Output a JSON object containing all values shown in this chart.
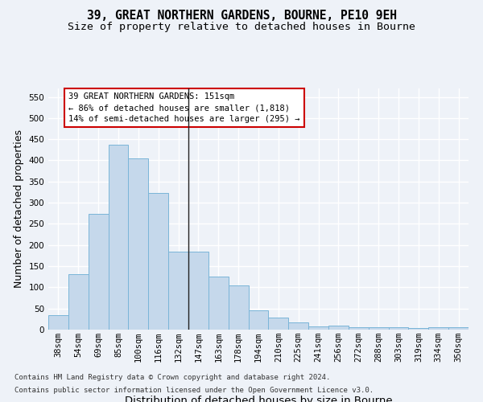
{
  "title1": "39, GREAT NORTHERN GARDENS, BOURNE, PE10 9EH",
  "title2": "Size of property relative to detached houses in Bourne",
  "xlabel": "Distribution of detached houses by size in Bourne",
  "ylabel": "Number of detached properties",
  "categories": [
    "38sqm",
    "54sqm",
    "69sqm",
    "85sqm",
    "100sqm",
    "116sqm",
    "132sqm",
    "147sqm",
    "163sqm",
    "178sqm",
    "194sqm",
    "210sqm",
    "225sqm",
    "241sqm",
    "256sqm",
    "272sqm",
    "288sqm",
    "303sqm",
    "319sqm",
    "334sqm",
    "350sqm"
  ],
  "values": [
    35,
    132,
    273,
    437,
    405,
    323,
    184,
    184,
    126,
    105,
    46,
    29,
    18,
    8,
    10,
    5,
    5,
    5,
    3,
    5,
    6
  ],
  "bar_color": "#c5d8eb",
  "bar_edge_color": "#7ab5d8",
  "vline_index": 7,
  "ylim": [
    0,
    570
  ],
  "yticks": [
    0,
    50,
    100,
    150,
    200,
    250,
    300,
    350,
    400,
    450,
    500,
    550
  ],
  "annotation_line1": "39 GREAT NORTHERN GARDENS: 151sqm",
  "annotation_line2": "← 86% of detached houses are smaller (1,818)",
  "annotation_line3": "14% of semi-detached houses are larger (295) →",
  "footer1": "Contains HM Land Registry data © Crown copyright and database right 2024.",
  "footer2": "Contains public sector information licensed under the Open Government Licence v3.0.",
  "background_color": "#eef2f8",
  "grid_color": "#ffffff",
  "title_fontsize": 10.5,
  "subtitle_fontsize": 9.5,
  "axis_label_fontsize": 9,
  "tick_fontsize": 7.5,
  "annotation_fontsize": 7.5,
  "footer_fontsize": 6.5
}
